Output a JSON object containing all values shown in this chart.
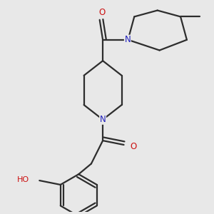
{
  "bg_color": "#e8e8e8",
  "bond_color": "#2d2d2d",
  "N_color": "#2020bb",
  "O_color": "#cc1111",
  "line_width": 1.6,
  "figsize": [
    3.0,
    3.0
  ],
  "dpi": 100,
  "xlim": [
    0.0,
    10.0
  ],
  "ylim": [
    0.0,
    10.0
  ]
}
